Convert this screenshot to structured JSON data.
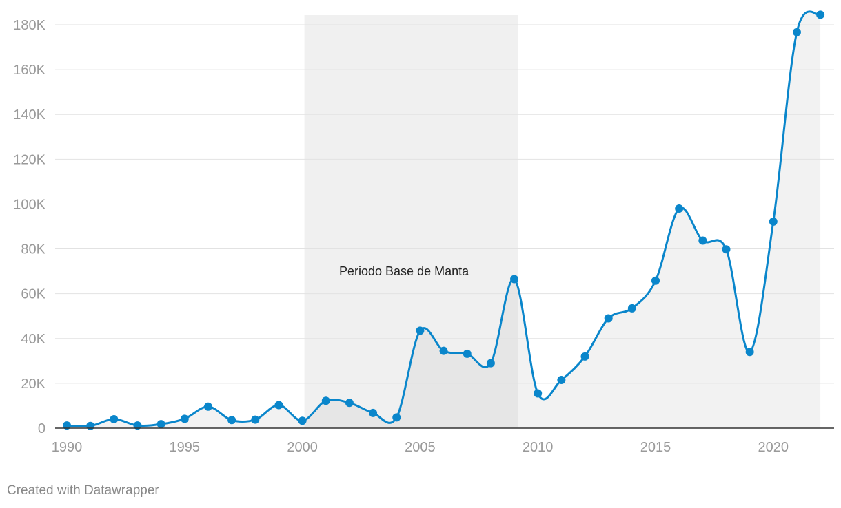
{
  "chart_data": {
    "type": "area",
    "x": [
      1990,
      1991,
      1992,
      1993,
      1994,
      1995,
      1996,
      1997,
      1998,
      1999,
      2000,
      2001,
      2002,
      2003,
      2004,
      2005,
      2006,
      2007,
      2008,
      2009,
      2010,
      2011,
      2012,
      2013,
      2014,
      2015,
      2016,
      2017,
      2018,
      2019,
      2020,
      2021,
      2022
    ],
    "series": [
      {
        "values": [
          1200,
          1000,
          4000,
          1200,
          1800,
          4200,
          9600,
          3600,
          3800,
          10300,
          3300,
          12200,
          11300,
          6800,
          4800,
          43500,
          34500,
          33200,
          29000,
          66500,
          15500,
          21500,
          32000,
          49000,
          53500,
          65800,
          98000,
          83700,
          79800,
          34000,
          92200,
          176700,
          184500
        ],
        "color": "#0a86cb"
      }
    ],
    "xlim": [
      1990,
      2022
    ],
    "ylim": [
      0,
      180000
    ],
    "x_ticks": [
      "1990",
      "1995",
      "2000",
      "2005",
      "2010",
      "2015",
      "2020"
    ],
    "x_tick_values": [
      1990,
      1995,
      2000,
      2005,
      2010,
      2015,
      2020
    ],
    "y_ticks": [
      "0",
      "20K",
      "40K",
      "60K",
      "80K",
      "100K",
      "120K",
      "140K",
      "160K",
      "180K"
    ],
    "y_tick_values": [
      0,
      20000,
      40000,
      60000,
      80000,
      100000,
      120000,
      140000,
      160000,
      180000
    ],
    "highlight_range": {
      "x_start": 2000,
      "x_end": 2009,
      "label": "Periodo Base de Manta"
    },
    "grid": true,
    "area_color": "#f0f0f0",
    "highlight_color": "#f0f0f0",
    "line_color": "#0a86cb"
  },
  "footer": {
    "credit": "Created with Datawrapper"
  }
}
